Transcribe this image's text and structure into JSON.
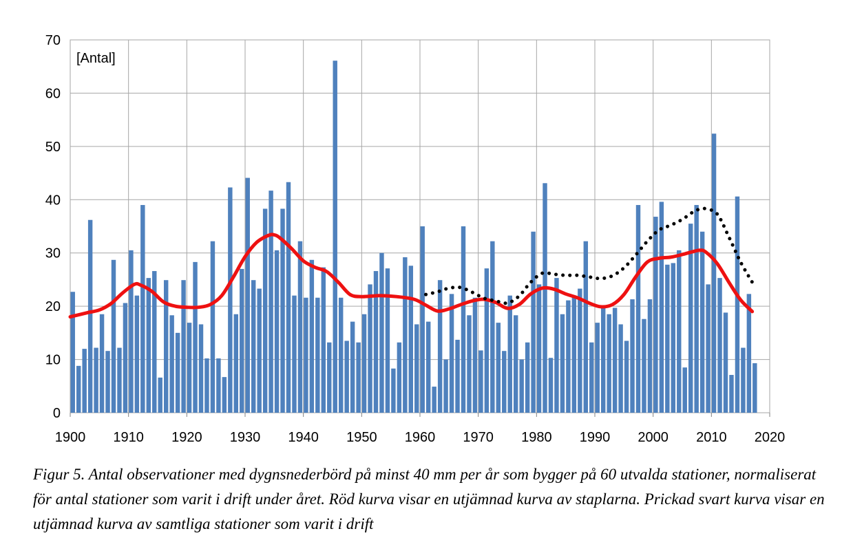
{
  "chart_data": {
    "type": "bar",
    "unit_label": "[Antal]",
    "xlim": [
      1900,
      2020
    ],
    "ylim": [
      0,
      70
    ],
    "x_ticks": [
      "1900",
      "1910",
      "1920",
      "1930",
      "1940",
      "1950",
      "1960",
      "1970",
      "1980",
      "1990",
      "2000",
      "2010",
      "2020"
    ],
    "y_ticks": [
      "0",
      "10",
      "20",
      "30",
      "40",
      "50",
      "60",
      "70"
    ],
    "grid": true,
    "colors": {
      "bars": "#4f81bd",
      "smooth": "#ee1111",
      "all_stations": "#000000",
      "grid": "#a6a6a6"
    },
    "series": [
      {
        "name": "Antal observationer (60 utvalda stationer)",
        "type": "bar",
        "x": [
          1900,
          1901,
          1902,
          1903,
          1904,
          1905,
          1906,
          1907,
          1908,
          1909,
          1910,
          1911,
          1912,
          1913,
          1914,
          1915,
          1916,
          1917,
          1918,
          1919,
          1920,
          1921,
          1922,
          1923,
          1924,
          1925,
          1926,
          1927,
          1928,
          1929,
          1930,
          1931,
          1932,
          1933,
          1934,
          1935,
          1936,
          1937,
          1938,
          1939,
          1940,
          1941,
          1942,
          1943,
          1944,
          1945,
          1946,
          1947,
          1948,
          1949,
          1950,
          1951,
          1952,
          1953,
          1954,
          1955,
          1956,
          1957,
          1958,
          1959,
          1960,
          1961,
          1962,
          1963,
          1964,
          1965,
          1966,
          1967,
          1968,
          1969,
          1970,
          1971,
          1972,
          1973,
          1974,
          1975,
          1976,
          1977,
          1978,
          1979,
          1980,
          1981,
          1982,
          1983,
          1984,
          1985,
          1986,
          1987,
          1988,
          1989,
          1990,
          1991,
          1992,
          1993,
          1994,
          1995,
          1996,
          1997,
          1998,
          1999,
          2000,
          2001,
          2002,
          2003,
          2004,
          2005,
          2006,
          2007,
          2008,
          2009,
          2010,
          2011,
          2012,
          2013,
          2014,
          2015,
          2016,
          2017
        ],
        "values": [
          22.7,
          8.8,
          12.0,
          36.2,
          12.2,
          18.5,
          11.6,
          28.7,
          12.2,
          20.6,
          30.5,
          22.0,
          39.0,
          25.3,
          26.6,
          6.6,
          24.9,
          18.3,
          15.0,
          24.9,
          16.9,
          28.3,
          16.6,
          10.2,
          32.2,
          10.2,
          6.7,
          42.3,
          18.5,
          27.0,
          44.1,
          24.9,
          23.3,
          38.3,
          41.7,
          30.5,
          38.3,
          43.3,
          22.0,
          32.2,
          21.6,
          28.7,
          21.6,
          27.3,
          13.2,
          66.1,
          21.6,
          13.5,
          17.1,
          13.2,
          18.5,
          24.1,
          26.6,
          30.0,
          27.1,
          8.3,
          13.2,
          29.2,
          27.6,
          16.6,
          35.0,
          17.1,
          4.9,
          24.9,
          10.0,
          22.3,
          13.7,
          35.0,
          18.3,
          21.6,
          11.7,
          27.1,
          32.2,
          16.9,
          11.6,
          22.0,
          18.3,
          10.0,
          13.2,
          34.0,
          24.1,
          43.1,
          10.3,
          25.3,
          18.5,
          21.1,
          22.0,
          23.3,
          32.2,
          13.2,
          16.9,
          19.7,
          18.5,
          19.7,
          16.6,
          13.5,
          21.3,
          39.0,
          17.6,
          21.3,
          36.8,
          39.6,
          27.8,
          28.1,
          30.5,
          8.5,
          35.5,
          39.0,
          34.0,
          24.1,
          52.4,
          25.3,
          18.8,
          7.1,
          40.6,
          12.2,
          22.3,
          9.3
        ]
      },
      {
        "name": "Utjämnad kurva av staplarna",
        "type": "line",
        "style": "solid",
        "x": [
          1900,
          1903,
          1905,
          1907,
          1909,
          1911,
          1912,
          1914,
          1916,
          1918,
          1920,
          1922,
          1924,
          1926,
          1928,
          1930,
          1932,
          1934,
          1935,
          1936,
          1938,
          1940,
          1942,
          1944,
          1946,
          1948,
          1950,
          1953,
          1956,
          1959,
          1961,
          1963,
          1965,
          1967,
          1969,
          1971,
          1973,
          1975,
          1977,
          1979,
          1981,
          1983,
          1985,
          1987,
          1989,
          1991,
          1993,
          1995,
          1997,
          1999,
          2001,
          2003,
          2005,
          2007,
          2008,
          2009,
          2011,
          2013,
          2015,
          2017
        ],
        "values": [
          18.0,
          18.8,
          19.3,
          20.5,
          22.5,
          24.1,
          24.0,
          22.8,
          20.8,
          20.0,
          19.8,
          19.8,
          20.3,
          22.0,
          25.5,
          29.3,
          32.0,
          33.3,
          33.4,
          32.8,
          30.8,
          28.5,
          27.3,
          26.5,
          24.5,
          22.2,
          21.8,
          22.0,
          21.8,
          21.3,
          20.2,
          19.1,
          19.5,
          20.3,
          21.0,
          21.3,
          20.7,
          19.6,
          20.3,
          22.3,
          23.4,
          23.2,
          22.3,
          21.6,
          20.6,
          19.9,
          20.3,
          22.2,
          25.5,
          28.3,
          29.0,
          29.2,
          29.7,
          30.3,
          30.5,
          30.2,
          28.0,
          24.5,
          21.2,
          19.0
        ]
      },
      {
        "name": "Utjämnad kurva av samtliga stationer",
        "type": "line",
        "style": "dotted",
        "x": [
          1961,
          1963,
          1965,
          1967,
          1969,
          1971,
          1973,
          1975,
          1977,
          1979,
          1981,
          1983,
          1985,
          1987,
          1989,
          1991,
          1993,
          1995,
          1997,
          1999,
          2001,
          2003,
          2005,
          2007,
          2008,
          2009,
          2011,
          2013,
          2015,
          2017
        ],
        "values": [
          22.2,
          22.7,
          23.4,
          23.5,
          22.6,
          21.5,
          21.0,
          20.6,
          21.9,
          24.5,
          26.2,
          26.0,
          25.8,
          25.8,
          25.5,
          25.2,
          25.7,
          27.2,
          29.6,
          32.2,
          34.3,
          35.2,
          36.3,
          37.8,
          38.2,
          38.3,
          37.3,
          33.0,
          28.3,
          24.5
        ]
      }
    ]
  },
  "caption": "Figur 5. Antal observationer med dygnsnederbörd på minst 40 mm per år som bygger på 60 utvalda stationer, normaliserat för antal stationer som varit i drift under året. Röd kurva visar en utjämnad kurva av staplarna. Prickad svart kurva visar en utjämnad kurva av samtliga stationer som varit i drift"
}
